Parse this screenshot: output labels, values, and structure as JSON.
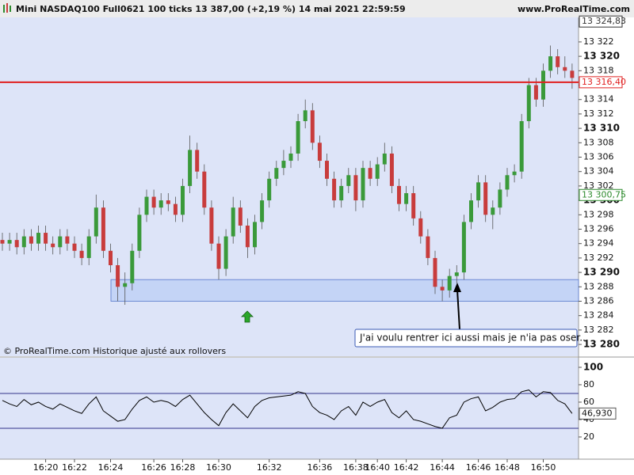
{
  "header": {
    "title": "Mini NASDAQ100 Full0621 100 ticks 13 387,00 (+2,19 %) 14 mai 2021 22:59:59",
    "site": "www.ProRealTime.com"
  },
  "chart_data": [
    {
      "type": "candlestick",
      "footnote": "© ProRealTime.com  Historique ajusté aux rollovers",
      "annotation": "J'ai voulu rentrer ici aussi mais je n'ia pas oser...",
      "categories": [
        null,
        null,
        null,
        null,
        null,
        null,
        "16:20",
        null,
        null,
        null,
        "16:22",
        null,
        null,
        null,
        null,
        "16:24",
        null,
        null,
        null,
        null,
        null,
        "16:26",
        null,
        null,
        null,
        "16:28",
        null,
        null,
        null,
        null,
        "16:30",
        null,
        null,
        null,
        null,
        null,
        null,
        "16:32",
        null,
        null,
        null,
        null,
        null,
        null,
        "16:36",
        null,
        null,
        null,
        null,
        "16:38",
        null,
        null,
        "16:40",
        null,
        null,
        null,
        "16:42",
        null,
        null,
        null,
        null,
        "16:44",
        null,
        null,
        null,
        null,
        "16:46",
        null,
        null,
        null,
        "16:48",
        null,
        null,
        null,
        null,
        "16:50",
        null,
        null,
        null,
        null
      ],
      "open": [
        13294.5,
        13294,
        13294.5,
        13293.5,
        13295,
        13294,
        13295.5,
        13294,
        13293.5,
        13295,
        13294,
        13293,
        13292,
        13295,
        13299,
        13293,
        13291,
        13288,
        13288.5,
        13293,
        13298,
        13300.5,
        13299,
        13300,
        13299.5,
        13298,
        13302,
        13307,
        13304,
        13299,
        13294,
        13290.5,
        13295,
        13299,
        13296.5,
        13293.5,
        13297,
        13300,
        13303,
        13304.5,
        13305.5,
        13306.5,
        13311,
        13312.5,
        13308,
        13305.5,
        13303,
        13300,
        13302,
        13303.5,
        13300,
        13304.5,
        13303,
        13305,
        13306.5,
        13302,
        13299.5,
        13301,
        13297.5,
        13295,
        13292,
        13288,
        13287.5,
        13289.5,
        13290,
        13297,
        13300,
        13302.5,
        13298,
        13299,
        13301.5,
        13303.5,
        13304,
        13311,
        13316,
        13314,
        13318,
        13320,
        13318.5,
        13318
      ],
      "high": [
        13295.5,
        13295.5,
        13295.5,
        13296,
        13296,
        13296.5,
        13296.5,
        13295,
        13296,
        13296,
        13295,
        13294,
        13296,
        13300.8,
        13300,
        13294,
        13292,
        13290,
        13294,
        13299,
        13301.5,
        13301.5,
        13301,
        13301,
        13300.5,
        13303,
        13309,
        13308,
        13305,
        13300,
        13295,
        13296,
        13300.5,
        13300,
        13297.5,
        13298,
        13301,
        13304,
        13305.5,
        13307,
        13307.5,
        13312,
        13314,
        13313.5,
        13309,
        13306.5,
        13304,
        13303,
        13304.5,
        13304.5,
        13305.5,
        13305.5,
        13306,
        13308,
        13307.5,
        13303,
        13302,
        13302,
        13298.5,
        13296,
        13293,
        13289,
        13290.5,
        13291,
        13298,
        13301,
        13303.5,
        13303.5,
        13300,
        13302.5,
        13304.5,
        13305,
        13312,
        13317,
        13317,
        13319,
        13321.5,
        13321,
        13320,
        13319
      ],
      "low": [
        13293,
        13293,
        13292.5,
        13292.5,
        13293,
        13293,
        13293,
        13292.5,
        13292.5,
        13293,
        13292,
        13291,
        13291,
        13294,
        13292,
        13290,
        13286,
        13285.5,
        13287.5,
        13292,
        13297,
        13298,
        13298,
        13298.5,
        13297,
        13297,
        13301,
        13303,
        13298,
        13293,
        13289,
        13289.5,
        13294,
        13295.5,
        13292,
        13292.5,
        13296,
        13299,
        13302,
        13303.5,
        13304.5,
        13305.5,
        13310,
        13307,
        13304.5,
        13302,
        13299,
        13299,
        13301,
        13298.5,
        13299,
        13302,
        13302,
        13304,
        13301,
        13298.5,
        13298.5,
        13296.5,
        13294,
        13291,
        13287,
        13286,
        13286.5,
        13288.5,
        13289,
        13296,
        13299,
        13297,
        13296,
        13298,
        13300.5,
        13302.5,
        13303,
        13310,
        13313,
        13313,
        13317,
        13317.5,
        13317,
        13315.5
      ],
      "close": [
        13294,
        13294.5,
        13293.5,
        13295,
        13294,
        13295.5,
        13294,
        13293.5,
        13295,
        13294,
        13293,
        13292,
        13295,
        13299,
        13293,
        13291,
        13288,
        13288.5,
        13293,
        13298,
        13300.5,
        13299,
        13300,
        13299.5,
        13298,
        13302,
        13307,
        13304,
        13299,
        13294,
        13290.5,
        13295,
        13299,
        13296.5,
        13293.5,
        13297,
        13300,
        13303,
        13304.5,
        13305.5,
        13306.5,
        13311,
        13312.5,
        13308,
        13305.5,
        13303,
        13300,
        13302,
        13303.5,
        13300,
        13304.5,
        13303,
        13305,
        13306.5,
        13302,
        13299.5,
        13301,
        13297.5,
        13295,
        13292,
        13288,
        13287.5,
        13289.5,
        13290,
        13297,
        13300,
        13302.5,
        13298,
        13299,
        13301.5,
        13303.5,
        13304,
        13311,
        13316,
        13314,
        13318,
        13320,
        13318.5,
        13318,
        13317
      ],
      "up_color": "#3a9a3a",
      "down_color": "#c83c3c",
      "zone": [
        13286,
        13289
      ],
      "markers": [
        {
          "value": 13324.83,
          "label": "13 324,83",
          "color": "#333333"
        },
        {
          "value": 13316.4,
          "label": "13 316,40",
          "color": "#e02020",
          "line": true
        },
        {
          "value": 13300.75,
          "label": "13 300,75",
          "color": "#2e8b2e"
        }
      ],
      "ylim": [
        13278.36,
        13325.4
      ],
      "yticks": [
        {
          "value": 13280,
          "label": "13 280"
        },
        {
          "value": 13282,
          "label": "13 282"
        },
        {
          "value": 13284,
          "label": "13 284"
        },
        {
          "value": 13286,
          "label": "13 286"
        },
        {
          "value": 13288,
          "label": "13 288"
        },
        {
          "value": 13290,
          "label": "13 290"
        },
        {
          "value": 13292,
          "label": "13 292"
        },
        {
          "value": 13294,
          "label": "13 294"
        },
        {
          "value": 13296,
          "label": "13 296"
        },
        {
          "value": 13298,
          "label": "13 298"
        },
        {
          "value": 13300,
          "label": "13 300"
        },
        {
          "value": 13302,
          "label": "13 302"
        },
        {
          "value": 13304,
          "label": "13 304"
        },
        {
          "value": 13306,
          "label": "13 306"
        },
        {
          "value": 13308,
          "label": "13 308"
        },
        {
          "value": 13310,
          "label": "13 310"
        },
        {
          "value": 13312,
          "label": "13 312"
        },
        {
          "value": 13314,
          "label": "13 314"
        },
        {
          "value": 13316,
          "label": "13 316"
        },
        {
          "value": 13318,
          "label": "13 318"
        },
        {
          "value": 13320,
          "label": "13 320"
        },
        {
          "value": 13322,
          "label": "13 322"
        }
      ]
    },
    {
      "type": "line",
      "values": [
        62,
        58,
        55,
        63,
        57,
        60,
        55,
        52,
        58,
        54,
        50,
        47,
        58,
        66,
        50,
        44,
        38,
        40,
        52,
        62,
        66,
        60,
        62,
        60,
        55,
        63,
        68,
        58,
        48,
        40,
        33,
        48,
        58,
        50,
        42,
        55,
        62,
        65,
        66,
        67,
        68,
        72,
        70,
        55,
        48,
        45,
        40,
        50,
        55,
        45,
        60,
        55,
        60,
        63,
        48,
        42,
        50,
        40,
        38,
        35,
        32,
        30,
        42,
        45,
        60,
        64,
        66,
        50,
        54,
        60,
        63,
        64,
        72,
        74,
        66,
        72,
        71,
        62,
        58,
        46.93
      ],
      "value_labels": {
        "79": "46,930"
      },
      "color": "#000000",
      "bands": [
        30,
        70
      ],
      "ylim": [
        -5.5,
        110.9
      ],
      "yticks": [
        20,
        40,
        60,
        80,
        100
      ]
    }
  ]
}
